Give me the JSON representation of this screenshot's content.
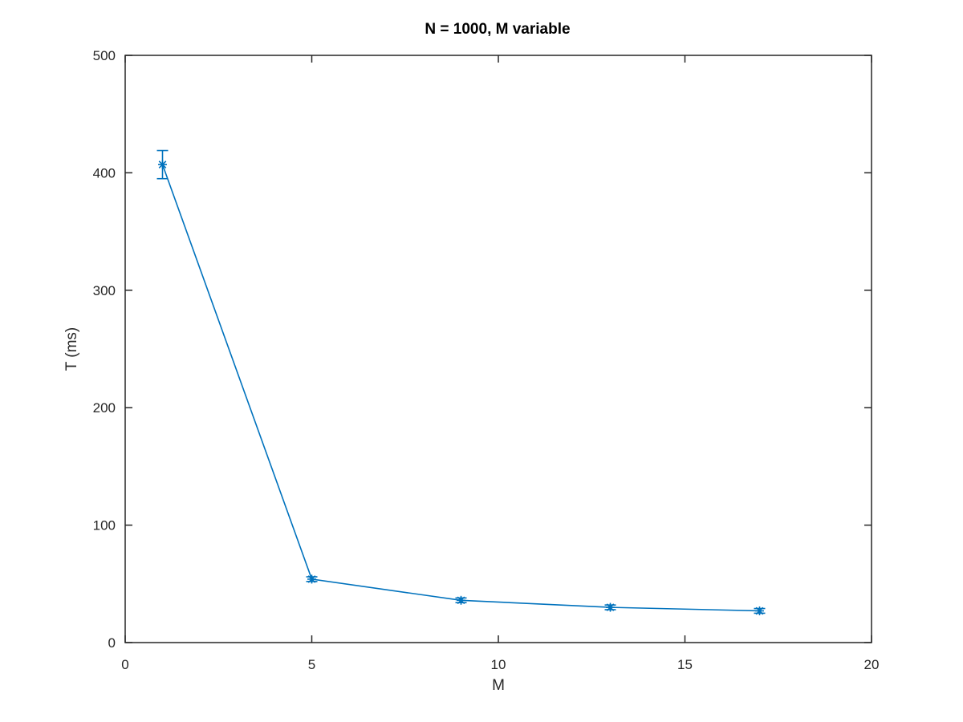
{
  "chart_data": {
    "type": "line",
    "title": "N = 1000, M variable",
    "xlabel": "M",
    "ylabel": "T (ms)",
    "xlim": [
      0,
      20
    ],
    "ylim": [
      0,
      500
    ],
    "xticks": [
      0,
      5,
      10,
      15,
      20
    ],
    "yticks": [
      0,
      100,
      200,
      300,
      400,
      500
    ],
    "grid": false,
    "legend": null,
    "series": [
      {
        "x": [
          1,
          5,
          9,
          13,
          17
        ],
        "values": [
          407,
          54,
          36,
          30,
          27
        ],
        "error": [
          12,
          2,
          2,
          2,
          2
        ],
        "color": "#0072bd",
        "marker": "asterisk",
        "error_bars": true
      }
    ]
  }
}
